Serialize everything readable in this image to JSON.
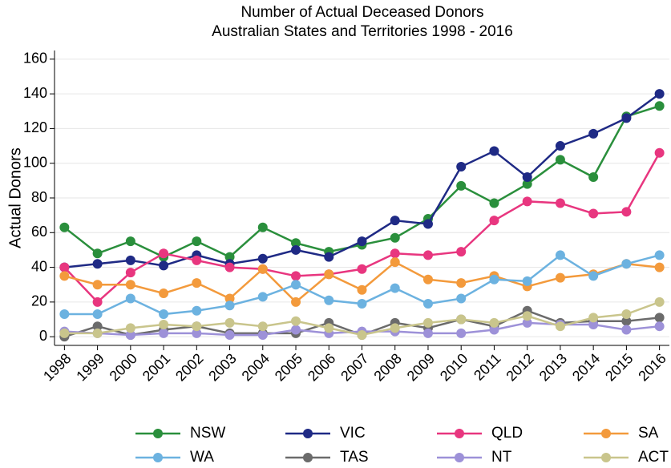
{
  "chart_data": {
    "type": "line",
    "title": "Number of Actual Deceased Donors",
    "subtitle": "Australian States and Territories 1998 - 2016",
    "y_label": "Actual Donors",
    "x": [
      1998,
      1999,
      2000,
      2001,
      2002,
      2003,
      2004,
      2005,
      2006,
      2007,
      2008,
      2009,
      2010,
      2011,
      2012,
      2013,
      2014,
      2015,
      2016
    ],
    "xlim": [
      1997.7,
      2016.3
    ],
    "xticks": [
      1998,
      1999,
      2000,
      2001,
      2002,
      2003,
      2004,
      2005,
      2006,
      2007,
      2008,
      2009,
      2010,
      2011,
      2012,
      2013,
      2014,
      2015,
      2016
    ],
    "ylim": [
      -5,
      165
    ],
    "yticks": [
      0,
      20,
      40,
      60,
      80,
      100,
      120,
      140,
      160
    ],
    "grid": true,
    "legend": "bottom",
    "series": [
      {
        "name": "NSW",
        "color": "#2a8f3c",
        "values": [
          63,
          48,
          55,
          46,
          55,
          46,
          63,
          54,
          49,
          53,
          57,
          68,
          87,
          77,
          88,
          102,
          92,
          127,
          133
        ]
      },
      {
        "name": "VIC",
        "color": "#1f2a85",
        "values": [
          40,
          42,
          44,
          41,
          47,
          42,
          45,
          50,
          46,
          55,
          67,
          65,
          98,
          107,
          92,
          110,
          117,
          126,
          140
        ]
      },
      {
        "name": "QLD",
        "color": "#e8367f",
        "values": [
          40,
          20,
          37,
          48,
          44,
          40,
          39,
          35,
          36,
          39,
          48,
          47,
          49,
          67,
          78,
          77,
          71,
          72,
          106
        ]
      },
      {
        "name": "SA",
        "color": "#f39a3c",
        "values": [
          35,
          30,
          30,
          25,
          31,
          22,
          39,
          20,
          36,
          27,
          43,
          33,
          31,
          35,
          29,
          34,
          36,
          42,
          40
        ]
      },
      {
        "name": "WA",
        "color": "#6cb2e0",
        "values": [
          13,
          13,
          22,
          13,
          15,
          18,
          23,
          30,
          21,
          19,
          28,
          19,
          22,
          33,
          32,
          47,
          35,
          42,
          47
        ]
      },
      {
        "name": "TAS",
        "color": "#6b6b6b",
        "values": [
          0,
          6,
          1,
          4,
          6,
          2,
          2,
          2,
          8,
          1,
          8,
          5,
          10,
          6,
          15,
          8,
          9,
          9,
          11
        ]
      },
      {
        "name": "NT",
        "color": "#9d91d8",
        "values": [
          3,
          2,
          1,
          2,
          2,
          1,
          1,
          4,
          2,
          3,
          3,
          2,
          2,
          4,
          8,
          7,
          7,
          4,
          6
        ]
      },
      {
        "name": "ACT",
        "color": "#c9c58c",
        "values": [
          2,
          2,
          5,
          7,
          6,
          8,
          6,
          9,
          5,
          1,
          5,
          8,
          10,
          8,
          12,
          6,
          11,
          13,
          20
        ]
      }
    ]
  }
}
